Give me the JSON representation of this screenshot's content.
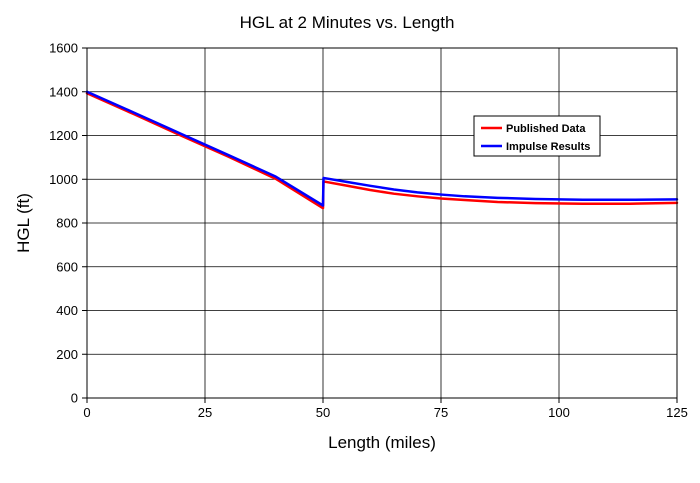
{
  "chart_data": {
    "type": "line",
    "title": "HGL at 2 Minutes vs. Length",
    "xlabel": "Length (miles)",
    "ylabel": "HGL (ft)",
    "xlim": [
      0,
      125
    ],
    "ylim": [
      0,
      1600
    ],
    "x_ticks": [
      0,
      25,
      50,
      75,
      100,
      125
    ],
    "y_ticks": [
      0,
      200,
      400,
      600,
      800,
      1000,
      1200,
      1400,
      1600
    ],
    "grid": true,
    "legend_position": "right-center",
    "series": [
      {
        "name": "Published Data",
        "color": "#ff0000",
        "points": [
          [
            0,
            1393
          ],
          [
            10,
            1297
          ],
          [
            20,
            1199
          ],
          [
            30,
            1103
          ],
          [
            40,
            1002
          ],
          [
            50,
            868
          ],
          [
            50.1,
            990
          ],
          [
            55,
            971
          ],
          [
            60,
            951
          ],
          [
            65,
            934
          ],
          [
            70,
            922
          ],
          [
            75,
            912
          ],
          [
            80,
            905
          ],
          [
            87,
            896
          ],
          [
            95,
            891
          ],
          [
            105,
            888
          ],
          [
            115,
            888
          ],
          [
            125,
            892
          ]
        ]
      },
      {
        "name": "Impulse Results",
        "color": "#0000ff",
        "points": [
          [
            0,
            1400
          ],
          [
            10,
            1304
          ],
          [
            20,
            1207
          ],
          [
            30,
            1110
          ],
          [
            40,
            1012
          ],
          [
            50,
            880
          ],
          [
            50.1,
            1006
          ],
          [
            55,
            988
          ],
          [
            60,
            970
          ],
          [
            65,
            953
          ],
          [
            70,
            940
          ],
          [
            75,
            930
          ],
          [
            80,
            922
          ],
          [
            87,
            915
          ],
          [
            95,
            910
          ],
          [
            105,
            906
          ],
          [
            115,
            906
          ],
          [
            125,
            908
          ]
        ]
      }
    ]
  }
}
